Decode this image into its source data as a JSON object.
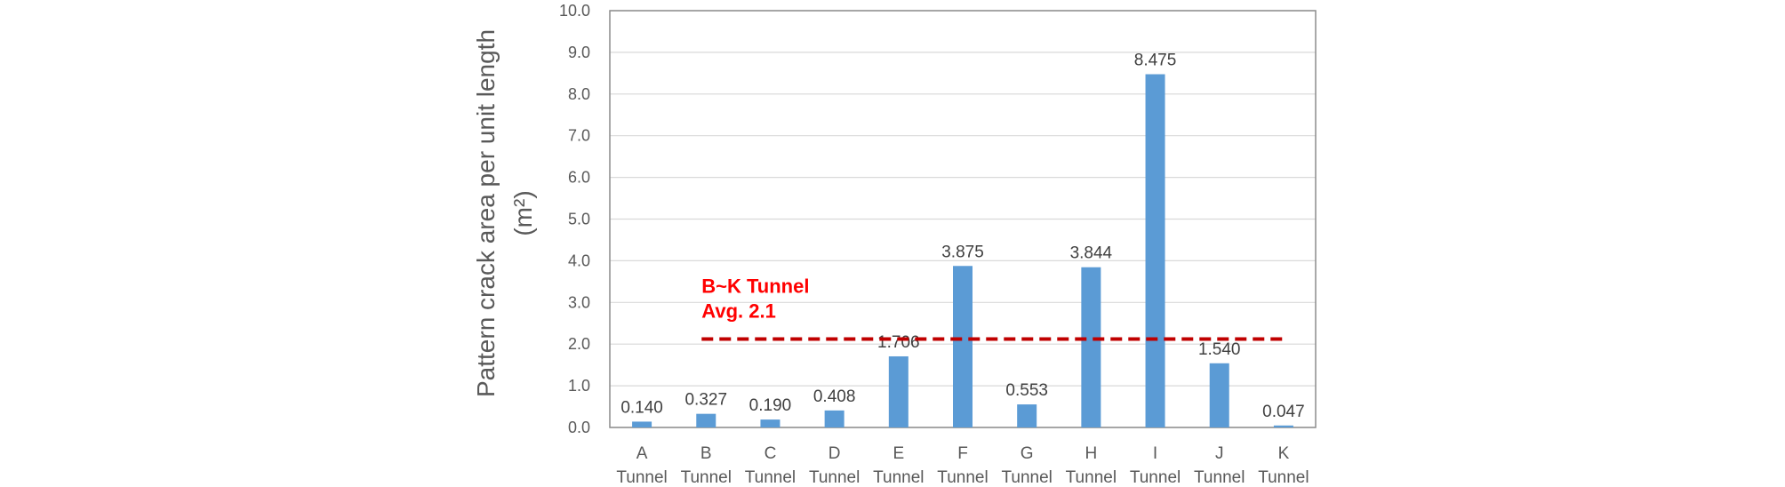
{
  "chart_data": {
    "type": "bar",
    "categories": [
      [
        "A",
        "Tunnel"
      ],
      [
        "B",
        "Tunnel"
      ],
      [
        "C",
        "Tunnel"
      ],
      [
        "D",
        "Tunnel"
      ],
      [
        "E",
        "Tunnel"
      ],
      [
        "F",
        "Tunnel"
      ],
      [
        "G",
        "Tunnel"
      ],
      [
        "H",
        "Tunnel"
      ],
      [
        "I",
        "Tunnel"
      ],
      [
        "J",
        "Tunnel"
      ],
      [
        "K",
        "Tunnel"
      ]
    ],
    "values": [
      0.14,
      0.327,
      0.19,
      0.408,
      1.706,
      3.875,
      0.553,
      3.844,
      8.475,
      1.54,
      0.047
    ],
    "value_labels": [
      "0.140",
      "0.327",
      "0.190",
      "0.408",
      "1.706",
      "3.875",
      "0.553",
      "3.844",
      "8.475",
      "1.540",
      "0.047"
    ],
    "ylabel_line1": "Pattern crack area per unit length",
    "ylabel_line2": "(m²)",
    "ylim": [
      0,
      10
    ],
    "yticks": [
      "0.0",
      "1.0",
      "2.0",
      "3.0",
      "4.0",
      "5.0",
      "6.0",
      "7.0",
      "8.0",
      "9.0",
      "10.0"
    ],
    "grid": true,
    "bar_color": "#5b9bd5",
    "reference_line": {
      "value": 2.1,
      "from_category": "B",
      "to_category": "K",
      "label_line1": "B~K Tunnel",
      "label_line2": "Avg. 2.1",
      "color": "#c00000",
      "label_color": "#ff0000",
      "style": "dashed"
    }
  }
}
